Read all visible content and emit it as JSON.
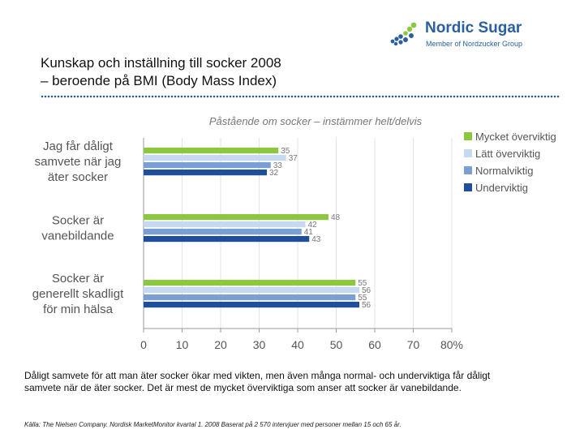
{
  "brand": {
    "name": "Nordic Sugar",
    "tagline": "Member of Nordzucker Group",
    "logo_icon": "sugar-beet-dots-icon",
    "primary_color": "#2a5fa0",
    "accent_color": "#8dc63f"
  },
  "header": {
    "title_line1": "Kunskap och inställning till socker 2008",
    "title_line2": "– beroende på BMI (Body Mass Index)"
  },
  "chart_data": {
    "type": "bar",
    "orientation": "horizontal",
    "title": "Påstående om socker – instämmer helt/delvis",
    "categories": [
      "Jag får dåligt samvete när jag äter socker",
      "Socker är vanebildande",
      "Socker är generellt skadligt för min hälsa"
    ],
    "category_lines": [
      [
        "Jag får dåligt",
        "samvete när jag",
        "äter socker"
      ],
      [
        "Socker är",
        "vanebildande"
      ],
      [
        "Socker är",
        "generellt skadligt",
        "för min hälsa"
      ]
    ],
    "series": [
      {
        "name": "Mycket överviktig",
        "color": "#8dc63f",
        "values": [
          35,
          48,
          55
        ]
      },
      {
        "name": "Lätt överviktig",
        "color": "#c5d9f1",
        "values": [
          37,
          42,
          56
        ]
      },
      {
        "name": "Normalviktig",
        "color": "#7a9fd4",
        "values": [
          33,
          41,
          55
        ]
      },
      {
        "name": "Underviktig",
        "color": "#1f4e9a",
        "values": [
          32,
          43,
          56
        ]
      }
    ],
    "xlim": [
      0,
      80
    ],
    "xticks": [
      "0",
      "10",
      "20",
      "30",
      "40",
      "50",
      "60",
      "70",
      "80%"
    ],
    "legend_position": "right"
  },
  "note": "Dåligt samvete för att man äter socker ökar med vikten, men även många normal- och underviktiga får dåligt samvete när de äter socker. Det är mest de mycket överviktiga som anser att socker är vanebildande.",
  "source": "Källa: The Nielsen Company. Nordisk MarketMonitor kvartal 1. 2008 Baserat på 2 570 intervjuer med personer mellan 15 och 65 år."
}
